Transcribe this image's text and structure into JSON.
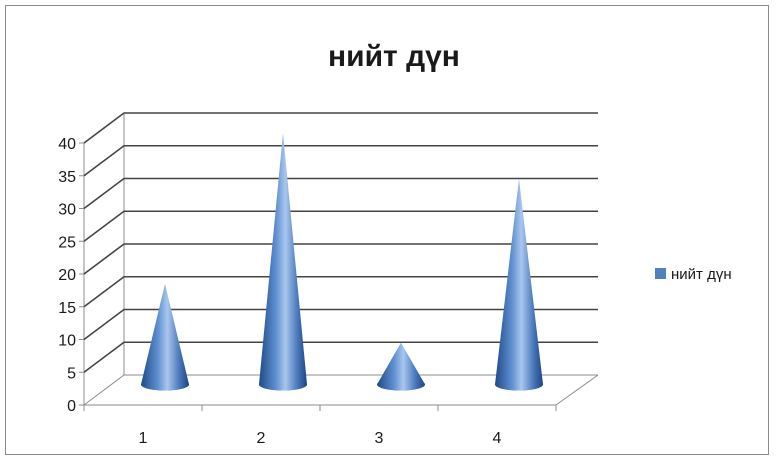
{
  "chart_data": {
    "type": "bar",
    "style": "3d-cone",
    "title": "нийт дүн",
    "categories": [
      "1",
      "2",
      "3",
      "4"
    ],
    "series": [
      {
        "name": "нийт дүн",
        "values": [
          16,
          39,
          7,
          32
        ],
        "color": "#4f81bd"
      }
    ],
    "ylim": [
      0,
      40
    ],
    "yticks": [
      "0",
      "5",
      "10",
      "15",
      "20",
      "25",
      "30",
      "35",
      "40"
    ],
    "grid": true,
    "legend": "right"
  }
}
